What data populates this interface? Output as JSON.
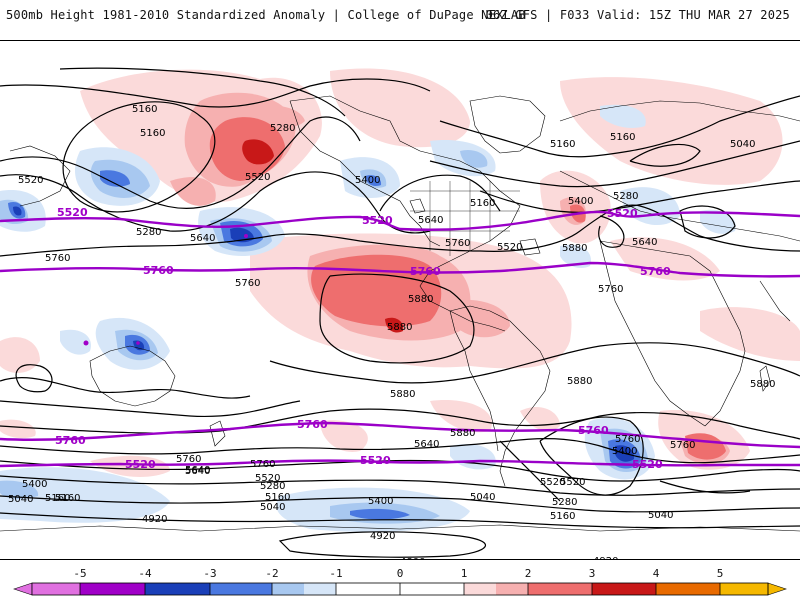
{
  "header": {
    "left_title": "500mb Height 1981-2010 Standardized Anomaly | College of DuPage NEXLAB",
    "right_title": "06Z GFS | F033 Valid: 15Z THU MAR 27 2025"
  },
  "contour_labels": {
    "black": [
      "5160",
      "5160",
      "5280",
      "5160",
      "5160",
      "5040",
      "5520",
      "5400",
      "5280",
      "5160",
      "5520",
      "5640",
      "5760",
      "5400",
      "5280",
      "5640",
      "5880",
      "5760",
      "5520",
      "5640",
      "5760",
      "5880",
      "5880",
      "5880",
      "5880",
      "5880",
      "5880",
      "5760",
      "5640",
      "5760",
      "5640",
      "5760",
      "5400",
      "5760",
      "5400",
      "5520",
      "5040",
      "5160",
      "5640",
      "5520",
      "5280",
      "5160",
      "5040",
      "5400",
      "5040",
      "5160",
      "5280",
      "5520",
      "5040",
      "5160",
      "4920",
      "4920",
      "4800",
      "4920",
      "5760"
    ],
    "purple": [
      "5520",
      "5760",
      "5520",
      "5760",
      "5520",
      "5760",
      "5760",
      "5760",
      "5520",
      "5520",
      "5760",
      "5520"
    ]
  },
  "colorbar": {
    "ticks": [
      "-5",
      "-4",
      "-3",
      "-2",
      "-1",
      "0",
      "1",
      "2",
      "3",
      "4",
      "5"
    ],
    "colors": {
      "neg5": "#e070e0",
      "neg4": "#a000c8",
      "neg3": "#1a3fb8",
      "neg2": "#4a78e0",
      "neg1": "#a8c8f0",
      "neg05": "#d6e6f8",
      "pos05": "#fbdada",
      "pos1": "#f6b0b0",
      "pos2": "#ee6e6e",
      "pos3": "#c81818",
      "pos4": "#e86a00",
      "pos5": "#f5b800"
    }
  },
  "colors": {
    "height_contour": "#000000",
    "highlight_contour": "#9a00c8",
    "land_outline": "#000000"
  }
}
